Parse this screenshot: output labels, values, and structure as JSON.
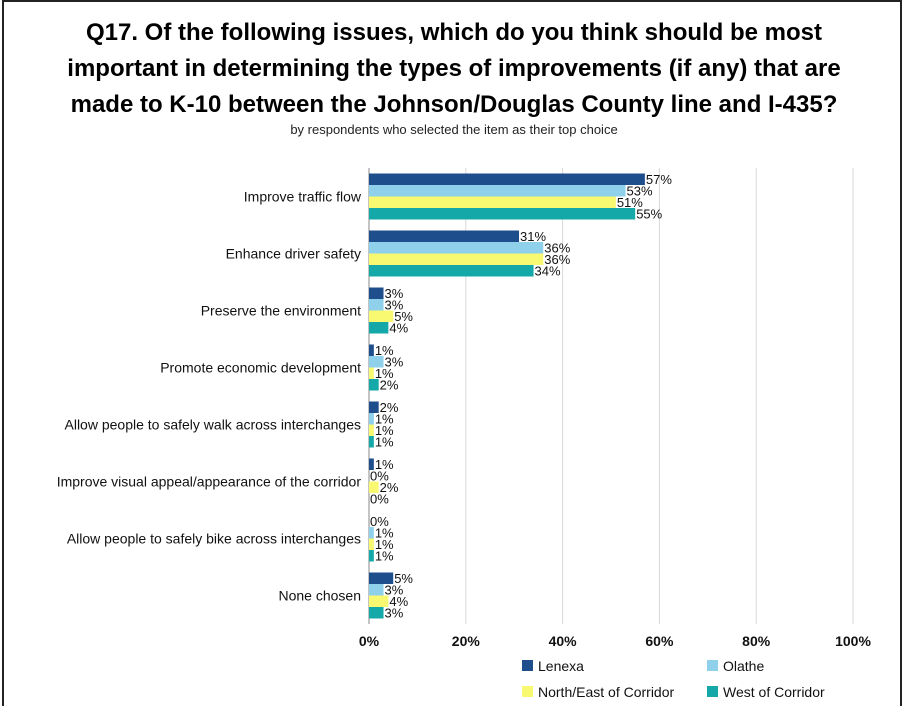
{
  "chart_data": {
    "type": "bar",
    "orientation": "horizontal",
    "title_lines": [
      "Q17. Of the following issues, which do you think should be most",
      "important in determining the types of improvements (if any) that are",
      "made to K-10 between the Johnson/Douglas County line and I-435?"
    ],
    "subtitle": "by respondents who selected the item as their top choice",
    "categories": [
      "Improve traffic flow",
      "Enhance driver safety",
      "Preserve the environment",
      "Promote economic development",
      "Allow people to safely walk across interchanges",
      "Improve visual appeal/appearance of the corridor",
      "Allow people to safely bike across interchanges",
      "None chosen"
    ],
    "series": [
      {
        "name": "Lenexa",
        "color": "#1f4e8c",
        "values": [
          57,
          31,
          3,
          1,
          2,
          1,
          0,
          5
        ]
      },
      {
        "name": "Olathe",
        "color": "#8fd0ea",
        "values": [
          53,
          36,
          3,
          3,
          1,
          0,
          1,
          3
        ]
      },
      {
        "name": "North/East of Corridor",
        "color": "#f9f871",
        "values": [
          51,
          36,
          5,
          1,
          1,
          2,
          1,
          4
        ]
      },
      {
        "name": "West of Corridor",
        "color": "#15a8a8",
        "values": [
          55,
          34,
          4,
          2,
          1,
          0,
          1,
          3
        ]
      }
    ],
    "xlim": [
      0,
      100
    ],
    "x_ticks": [
      "0%",
      "20%",
      "40%",
      "60%",
      "80%",
      "100%"
    ],
    "x_tick_values": [
      0,
      20,
      40,
      60,
      80,
      100
    ],
    "value_suffix": "%",
    "grid": true,
    "legend_position": "bottom-right"
  }
}
